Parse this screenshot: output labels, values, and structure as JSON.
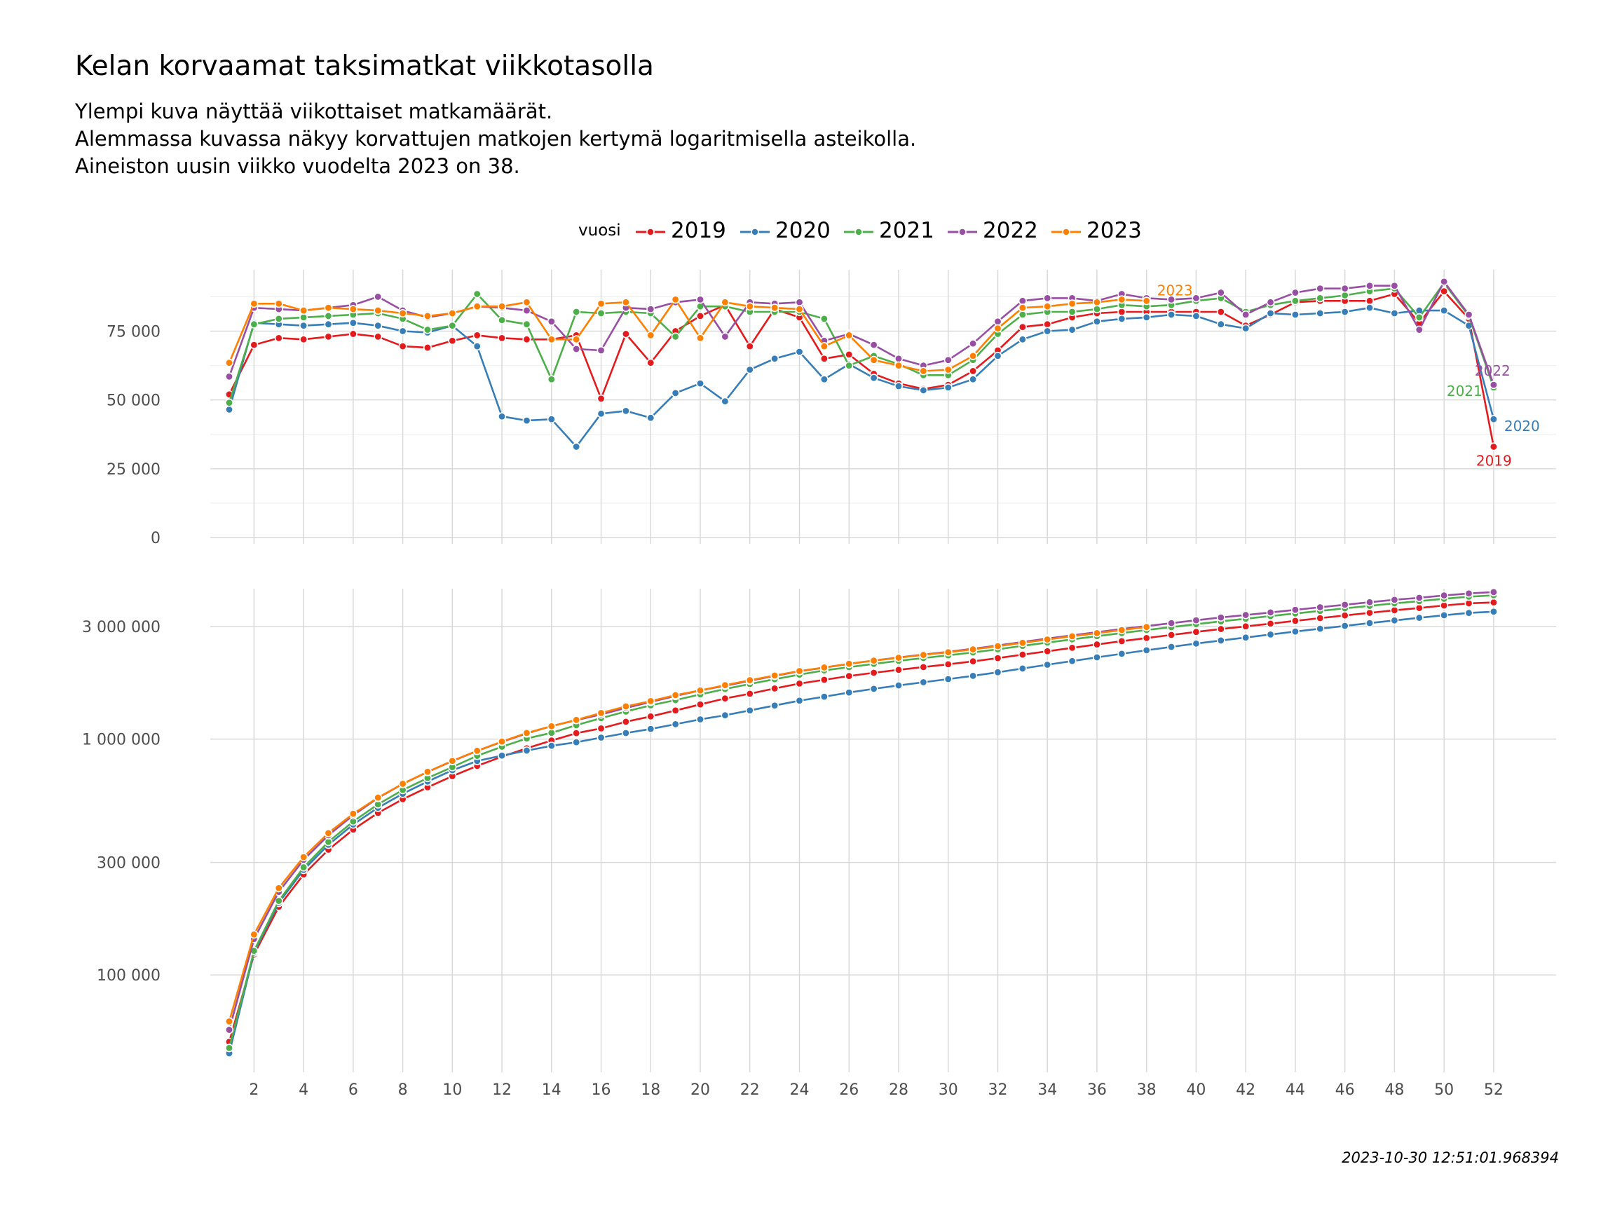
{
  "title": "Kelan korvaamat taksimatkat viikkotasolla",
  "subtitle": [
    "Ylempi kuva näyttää viikottaiset matkamäärät.",
    "Alemmassa kuvassa näkyy korvattujen matkojen kertymä logaritmisella asteikolla.",
    "Aineiston uusin viikko vuodelta 2023 on 38."
  ],
  "caption": "2023-10-30 12:51:01.968394",
  "legend": {
    "title": "vuosi",
    "position": "top",
    "items": [
      {
        "label": "2019",
        "color": "#E41A1C"
      },
      {
        "label": "2020",
        "color": "#377EB8"
      },
      {
        "label": "2021",
        "color": "#4DAF4A"
      },
      {
        "label": "2022",
        "color": "#984EA3"
      },
      {
        "label": "2023",
        "color": "#FF7F00"
      }
    ]
  },
  "chart_data": [
    {
      "type": "line",
      "panel": "weekly",
      "xlim": [
        1,
        52
      ],
      "x_ticks": [
        "2",
        "4",
        "6",
        "8",
        "10",
        "12",
        "14",
        "16",
        "18",
        "20",
        "22",
        "24",
        "26",
        "28",
        "30",
        "32",
        "34",
        "36",
        "38",
        "40",
        "42",
        "44",
        "46",
        "48",
        "50",
        "52"
      ],
      "ylim": [
        0,
        95000
      ],
      "y_ticks": [
        {
          "value": 0,
          "label": "0"
        },
        {
          "value": 25000,
          "label": "25 000"
        },
        {
          "value": 50000,
          "label": "50 000"
        },
        {
          "value": 75000,
          "label": "75 000"
        }
      ],
      "grid": true,
      "series": [
        {
          "name": "2019",
          "color": "#E41A1C",
          "end_label": "2019",
          "values": [
            52000,
            70000,
            72500,
            72000,
            73000,
            74000,
            73000,
            69500,
            69000,
            71500,
            73500,
            72500,
            72000,
            72000,
            73500,
            50500,
            74000,
            63500,
            75000,
            80500,
            84500,
            69500,
            83000,
            80000,
            65000,
            66500,
            59500,
            56000,
            54000,
            55500,
            60500,
            68000,
            76500,
            77500,
            80000,
            81500,
            82000,
            82000,
            82000,
            82000,
            82000,
            77000,
            81000,
            85500,
            86000,
            86000,
            86000,
            88500,
            78000,
            89500,
            79500,
            33000
          ]
        },
        {
          "name": "2020",
          "color": "#377EB8",
          "end_label": "2020",
          "values": [
            46500,
            78000,
            77500,
            77000,
            77500,
            78000,
            77000,
            75000,
            74500,
            77000,
            69500,
            44000,
            42500,
            43000,
            33000,
            45000,
            46000,
            43500,
            52500,
            56000,
            49500,
            61000,
            65000,
            67500,
            57500,
            63000,
            58000,
            55000,
            53500,
            54500,
            57500,
            66000,
            72000,
            75000,
            75500,
            78500,
            79500,
            80000,
            81000,
            80500,
            77500,
            76000,
            81500,
            81000,
            81500,
            82000,
            83500,
            81500,
            82500,
            82500,
            77000,
            43000
          ]
        },
        {
          "name": "2021",
          "color": "#4DAF4A",
          "end_label": "2021",
          "values": [
            49000,
            77500,
            79500,
            80000,
            80500,
            81000,
            81500,
            79500,
            75500,
            77000,
            88500,
            79000,
            77500,
            57500,
            82000,
            81500,
            82000,
            81500,
            73000,
            84000,
            84000,
            82000,
            82000,
            82000,
            79500,
            62500,
            66000,
            63000,
            59000,
            59000,
            64500,
            74000,
            81000,
            82000,
            82000,
            83000,
            84500,
            84000,
            84500,
            86000,
            87000,
            82000,
            84500,
            86000,
            87000,
            88000,
            89500,
            90500,
            80000,
            92500,
            80500,
            54500
          ]
        },
        {
          "name": "2022",
          "color": "#984EA3",
          "end_label": "2022",
          "values": [
            58500,
            83500,
            83000,
            82500,
            83500,
            84500,
            87500,
            82500,
            80000,
            81500,
            84000,
            83500,
            82500,
            78500,
            68500,
            68000,
            83500,
            83000,
            85500,
            86500,
            73000,
            85500,
            85000,
            85500,
            71500,
            74000,
            70000,
            65000,
            62500,
            64500,
            70500,
            78500,
            86000,
            87000,
            87000,
            86000,
            88500,
            87000,
            86500,
            87000,
            89000,
            81000,
            85500,
            89000,
            90500,
            90500,
            91500,
            91500,
            75500,
            93000,
            81000,
            55500
          ]
        },
        {
          "name": "2023",
          "color": "#FF7F00",
          "end_label": "2023",
          "values": [
            63500,
            85000,
            85000,
            82500,
            83500,
            83000,
            82500,
            81500,
            80500,
            81500,
            84000,
            84000,
            85500,
            72000,
            72000,
            85000,
            85500,
            73500,
            86500,
            72500,
            85500,
            84000,
            83500,
            83000,
            69500,
            73500,
            64500,
            62500,
            60500,
            61000,
            66000,
            76000,
            83500,
            84000,
            85000,
            85500,
            86500,
            86000
          ]
        }
      ]
    },
    {
      "type": "line",
      "panel": "cumulative",
      "y_scale": "log",
      "xlim": [
        1,
        52
      ],
      "x_ticks": [
        "2",
        "4",
        "6",
        "8",
        "10",
        "12",
        "14",
        "16",
        "18",
        "20",
        "22",
        "24",
        "26",
        "28",
        "30",
        "32",
        "34",
        "36",
        "38",
        "40",
        "42",
        "44",
        "46",
        "48",
        "50",
        "52"
      ],
      "ylim": [
        40000,
        4200000
      ],
      "y_ticks": [
        {
          "value": 100000,
          "label": "100 000"
        },
        {
          "value": 300000,
          "label": "300 000"
        },
        {
          "value": 1000000,
          "label": "1 000 000"
        },
        {
          "value": 3000000,
          "label": "3 000 000"
        }
      ],
      "grid": true,
      "series": [
        {
          "name": "2019",
          "color": "#E41A1C",
          "values": [
            52000,
            122000,
            194500,
            266500,
            339500,
            413500,
            486500,
            556000,
            625000,
            696500,
            770000,
            842500,
            914500,
            986500,
            1060000,
            1110500,
            1184500,
            1248000,
            1323000,
            1403500,
            1488000,
            1557500,
            1640500,
            1720500,
            1785500,
            1852000,
            1911500,
            1967500,
            2021500,
            2077000,
            2137500,
            2205500,
            2282000,
            2359500,
            2439500,
            2521000,
            2603000,
            2685000,
            2767000,
            2849000,
            2931000,
            3008000,
            3089000,
            3174500,
            3260500,
            3346500,
            3432500,
            3521000,
            3599000,
            3688500,
            3768000,
            3801000
          ]
        },
        {
          "name": "2020",
          "color": "#377EB8",
          "values": [
            46500,
            124500,
            202000,
            279000,
            356500,
            434500,
            511500,
            586500,
            661000,
            738000,
            807500,
            851500,
            894000,
            937000,
            970000,
            1015000,
            1061000,
            1104500,
            1157000,
            1213000,
            1262500,
            1323500,
            1388500,
            1456000,
            1513500,
            1576500,
            1634500,
            1689500,
            1743000,
            1797500,
            1855000,
            1921000,
            1993000,
            2068000,
            2143500,
            2222000,
            2301500,
            2381500,
            2462500,
            2543000,
            2620500,
            2696500,
            2778000,
            2859000,
            2940500,
            3022500,
            3106000,
            3187500,
            3270000,
            3352500,
            3429500,
            3472500
          ]
        },
        {
          "name": "2021",
          "color": "#4DAF4A",
          "values": [
            49000,
            126500,
            206000,
            286000,
            366500,
            447500,
            529000,
            608500,
            684000,
            761000,
            849500,
            928500,
            1006000,
            1063500,
            1145500,
            1227000,
            1309000,
            1390500,
            1463500,
            1547500,
            1631500,
            1713500,
            1795500,
            1877500,
            1957000,
            2019500,
            2085500,
            2148500,
            2207500,
            2266500,
            2331000,
            2405000,
            2486000,
            2568000,
            2650000,
            2733000,
            2817500,
            2901500,
            2986000,
            3072000,
            3159000,
            3241000,
            3325500,
            3411500,
            3498500,
            3586500,
            3676000,
            3766500,
            3846500,
            3939000,
            4019500,
            4074000
          ]
        },
        {
          "name": "2022",
          "color": "#984EA3",
          "values": [
            58500,
            142000,
            225000,
            307500,
            391000,
            475500,
            563000,
            645500,
            725500,
            807000,
            891000,
            974500,
            1057000,
            1135500,
            1204000,
            1272000,
            1355500,
            1438500,
            1524000,
            1610500,
            1683500,
            1769000,
            1854000,
            1939500,
            2011000,
            2085000,
            2155000,
            2220000,
            2282500,
            2347000,
            2417500,
            2496000,
            2582000,
            2669000,
            2756000,
            2842000,
            2930500,
            3017500,
            3104000,
            3191000,
            3280000,
            3361000,
            3446500,
            3535500,
            3626000,
            3716500,
            3808000,
            3899500,
            3975000,
            4068000,
            4149000,
            4204500
          ]
        },
        {
          "name": "2023",
          "color": "#FF7F00",
          "values": [
            63500,
            148500,
            233500,
            316000,
            399500,
            482500,
            565000,
            646500,
            727000,
            808500,
            892500,
            976500,
            1062000,
            1134000,
            1206000,
            1291000,
            1376500,
            1450000,
            1536500,
            1609000,
            1694500,
            1778500,
            1862000,
            1945000,
            2014500,
            2088000,
            2152500,
            2215000,
            2275500,
            2336500,
            2402500,
            2478500,
            2562000,
            2646000,
            2731000,
            2816500,
            2903000,
            2989000
          ]
        }
      ]
    }
  ]
}
